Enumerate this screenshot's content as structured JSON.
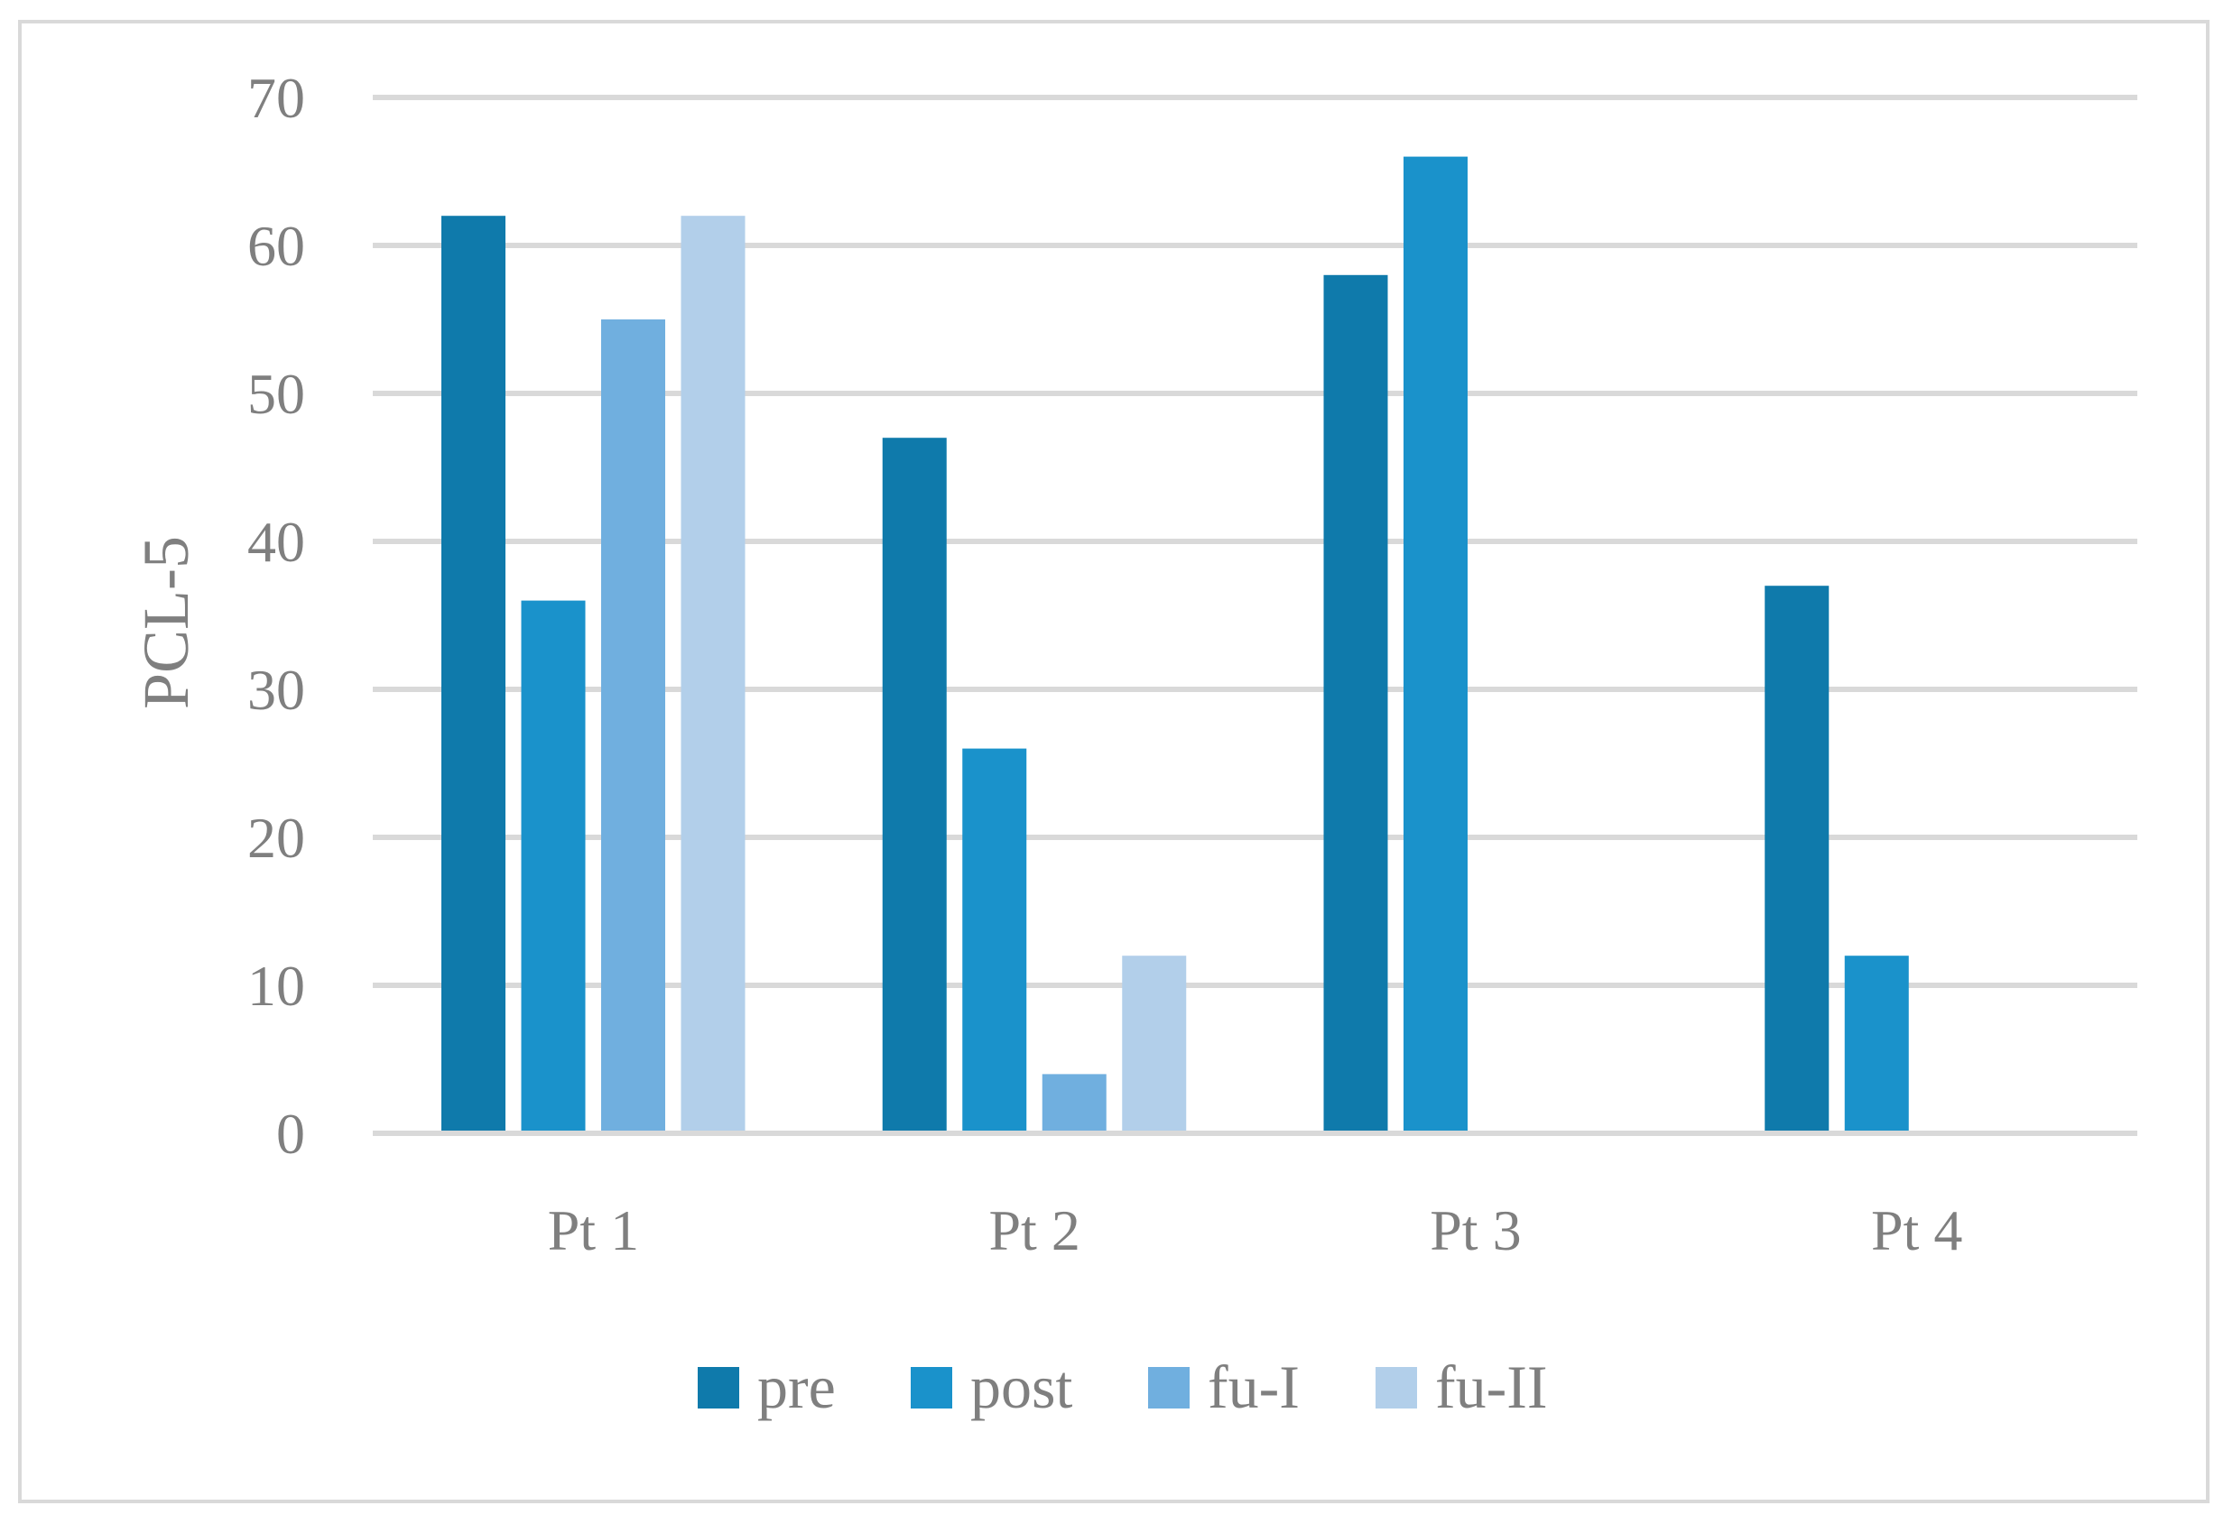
{
  "chart_data": {
    "type": "bar",
    "categories": [
      "Pt 1",
      "Pt 2",
      "Pt 3",
      "Pt 4"
    ],
    "series": [
      {
        "name": "pre",
        "color": "#0f7aab",
        "values": [
          62,
          47,
          58,
          37
        ]
      },
      {
        "name": "post",
        "color": "#1a92cb",
        "values": [
          36,
          26,
          66,
          12
        ]
      },
      {
        "name": "fu-I",
        "color": "#70afdf",
        "values": [
          55,
          4,
          null,
          null
        ]
      },
      {
        "name": "fu-II",
        "color": "#b2cfea",
        "values": [
          62,
          12,
          null,
          null
        ]
      }
    ],
    "ylabel": "PCL-5",
    "xlabel": "",
    "ylim": [
      0,
      70
    ],
    "yticks": [
      0,
      10,
      20,
      30,
      40,
      50,
      60,
      70
    ],
    "grid": true,
    "legend_position": "bottom",
    "colors": {
      "grid": "#d9d9d9",
      "text": "#7f7f7f",
      "border": "#d9d9d9"
    }
  }
}
